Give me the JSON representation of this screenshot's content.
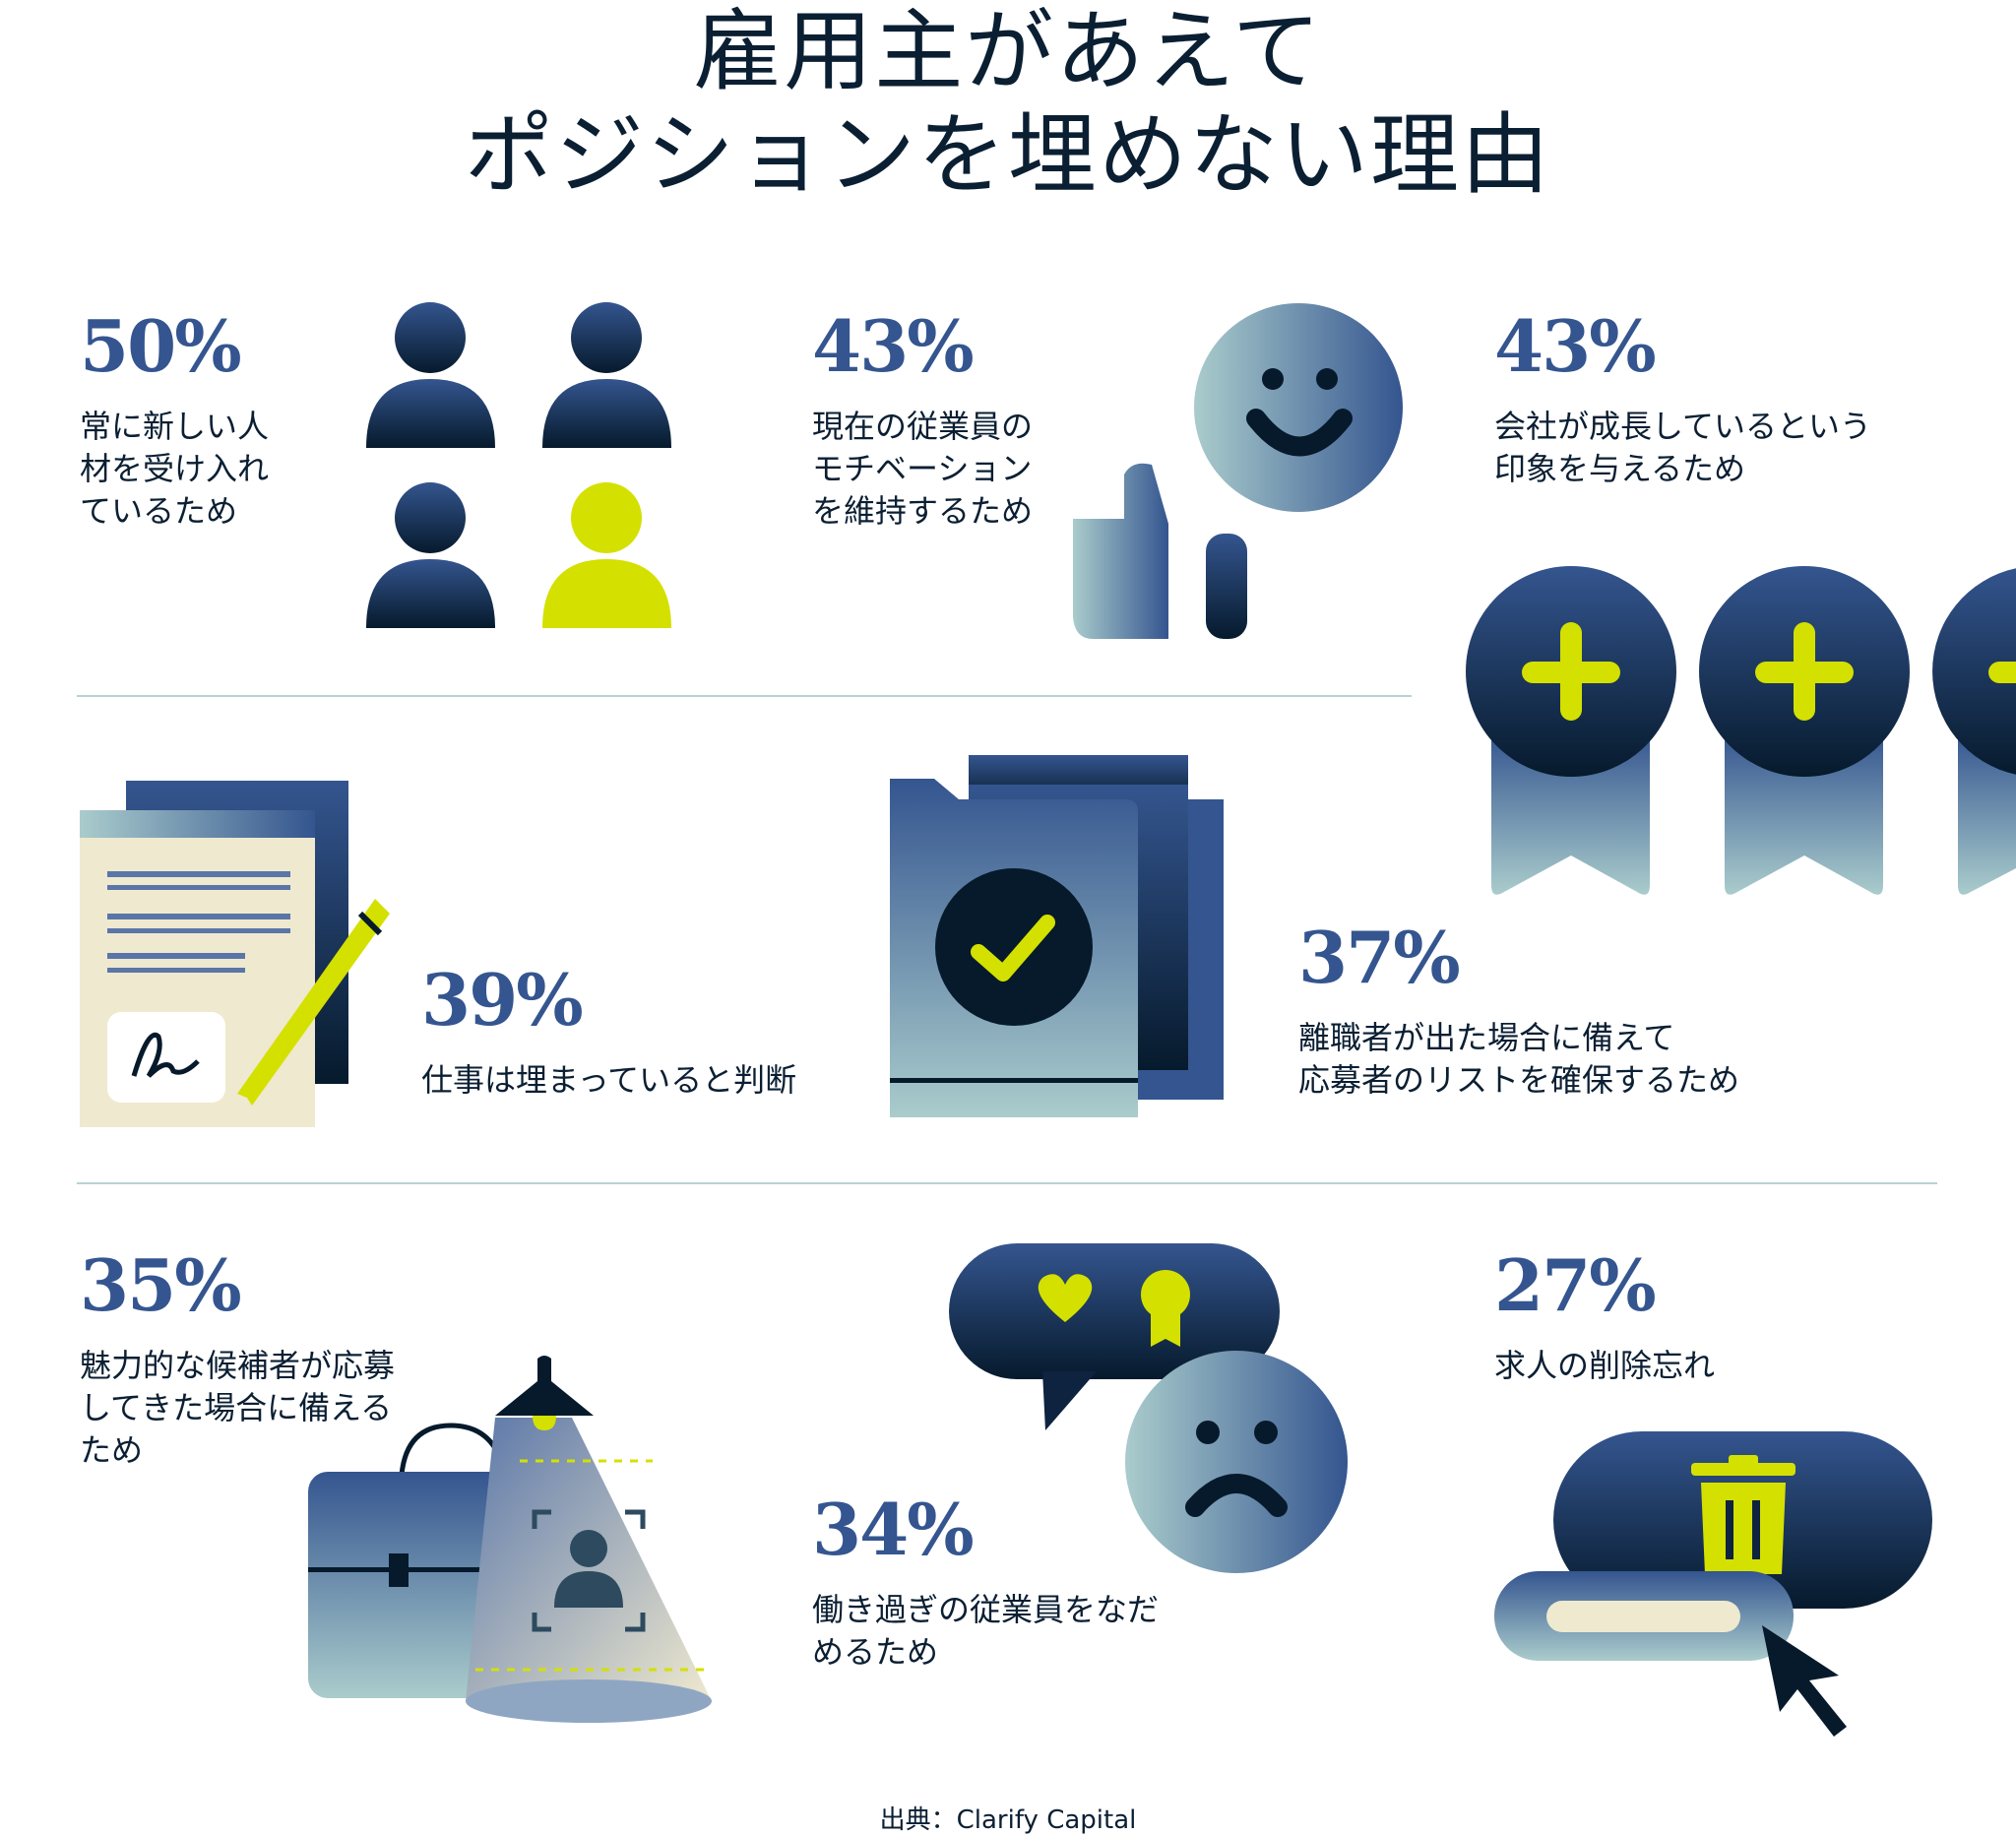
{
  "title": {
    "line1": "雇用主があえて",
    "line2": "ポジションを埋めない理由"
  },
  "colors": {
    "navy": "#0d2340",
    "blue": "#34558f",
    "lime": "#d4e000",
    "teal_light": "#a8c8c8",
    "cream": "#efe9cf",
    "divider": "#b9d2d2"
  },
  "stats": [
    {
      "value": "50%",
      "text": "常に新しい人\n材を受け入れ\nているため",
      "icon": "people-group-icon"
    },
    {
      "value": "43%",
      "text": "現在の従業員の\nモチベーション\nを維持するため",
      "icon": "smiley-thumbs-up-icon"
    },
    {
      "value": "43%",
      "text": "会社が成長しているという\n印象を与えるため",
      "icon": "plus-medals-icon"
    },
    {
      "value": "39%",
      "text": "仕事は埋まっていると判断",
      "icon": "signed-document-icon"
    },
    {
      "value": "37%",
      "text": "離職者が出た場合に備えて\n応募者のリストを確保するため",
      "icon": "checked-folder-icon"
    },
    {
      "value": "35%",
      "text": "魅力的な候補者が応募\nしてきた場合に備える\nため",
      "icon": "briefcase-spotlight-icon"
    },
    {
      "value": "34%",
      "text": "働き過ぎの従業員をなだ\nめるため",
      "icon": "sad-face-speech-bubble-icon"
    },
    {
      "value": "27%",
      "text": "求人の削除忘れ",
      "icon": "delete-trash-icon"
    }
  ],
  "source": "出典：Clarify Capital"
}
